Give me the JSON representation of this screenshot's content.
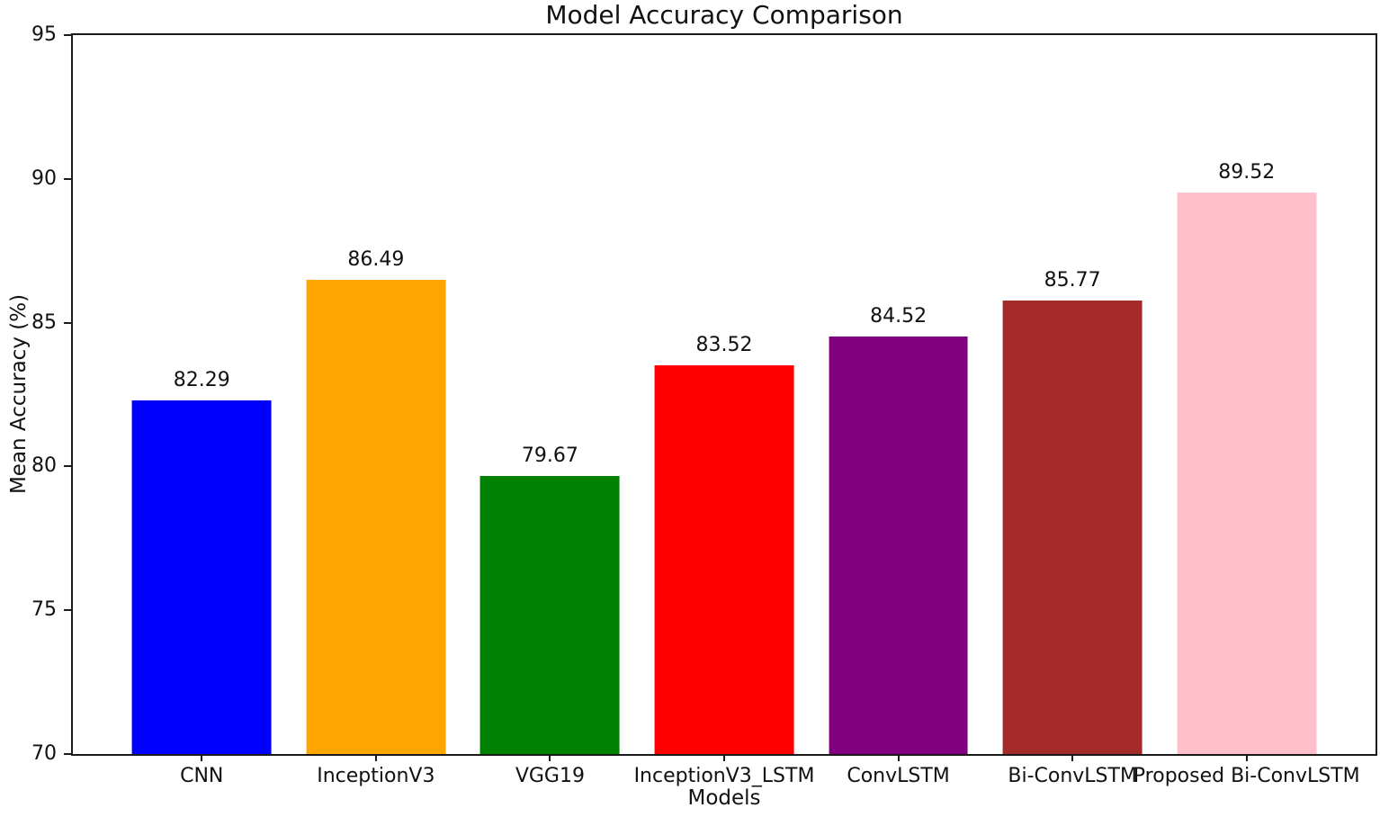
{
  "figure": {
    "background_color": "#ffffff",
    "spine_color": "#1a1a1a",
    "text_color": "#111111"
  },
  "chart_data": {
    "type": "bar",
    "title": "Model Accuracy Comparison",
    "xlabel": "Models",
    "ylabel": "Mean Accuracy (%)",
    "categories": [
      "CNN",
      "InceptionV3",
      "VGG19",
      "InceptionV3_LSTM",
      "ConvLSTM",
      "Bi-ConvLSTM",
      "Proposed Bi-ConvLSTM"
    ],
    "values": [
      82.29,
      86.49,
      79.67,
      83.52,
      84.52,
      85.77,
      89.52
    ],
    "value_labels": [
      "82.29",
      "86.49",
      "79.67",
      "83.52",
      "84.52",
      "85.77",
      "89.52"
    ],
    "bar_colors": [
      "#0000ff",
      "#ffa500",
      "#008000",
      "#ff0000",
      "#800080",
      "#a52a2a",
      "#ffc0cb"
    ],
    "ylim": [
      70,
      95
    ],
    "yticks": [
      70,
      75,
      80,
      85,
      90,
      95
    ],
    "xlim": [
      -0.74,
      6.74
    ],
    "bar_width_units": 0.8,
    "grid": false,
    "legend_position": "none"
  }
}
